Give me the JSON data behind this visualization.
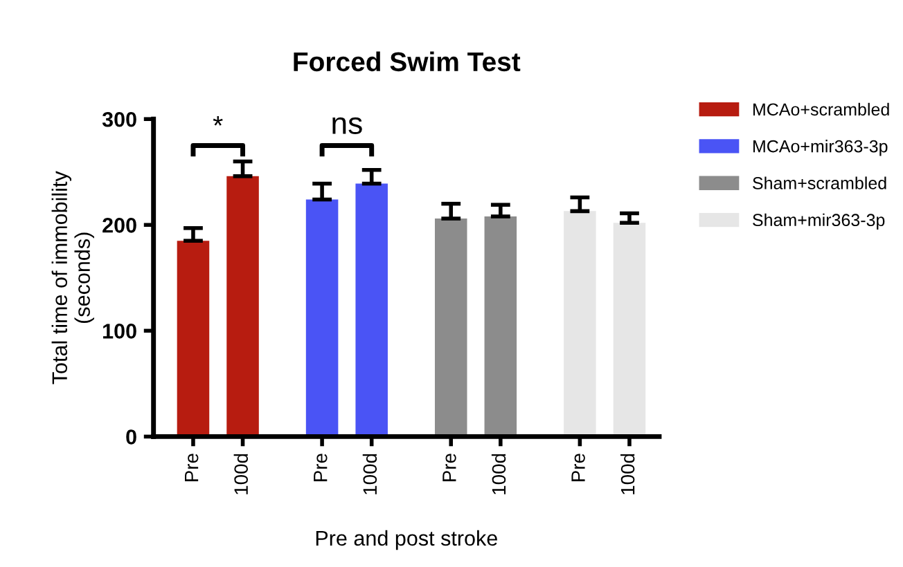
{
  "chart_data": {
    "type": "bar",
    "title": "Forced Swim Test",
    "xlabel": "Pre and post stroke",
    "ylabel": "Total time of immobility\n(seconds)",
    "categories": [
      "Pre",
      "100d",
      "Pre",
      "100d",
      "Pre",
      "100d",
      "Pre",
      "100d"
    ],
    "series": [
      {
        "name": "MCAo+scrambled",
        "color": "#b71c10",
        "values": [
          185,
          246,
          null,
          null,
          null,
          null,
          null,
          null
        ],
        "errors": [
          [
            185,
            197
          ],
          [
            246,
            260
          ],
          null,
          null,
          null,
          null,
          null,
          null
        ]
      },
      {
        "name": "MCAo+mir363-3p",
        "color": "#4a54f5",
        "values": [
          null,
          null,
          224,
          239,
          null,
          null,
          null,
          null
        ],
        "errors": [
          null,
          null,
          [
            224,
            239
          ],
          [
            239,
            252
          ],
          null,
          null,
          null,
          null
        ]
      },
      {
        "name": "Sham+scrambled",
        "color": "#8c8c8c",
        "values": [
          null,
          null,
          null,
          null,
          206,
          208,
          null,
          null
        ],
        "errors": [
          null,
          null,
          null,
          null,
          [
            206,
            220
          ],
          [
            208,
            219
          ],
          null,
          null
        ]
      },
      {
        "name": "Sham+mir363-3p",
        "color": "#e6e6e6",
        "values": [
          null,
          null,
          null,
          null,
          null,
          null,
          213,
          202
        ],
        "errors": [
          null,
          null,
          null,
          null,
          null,
          null,
          [
            213,
            226
          ],
          [
            202,
            211
          ]
        ]
      }
    ],
    "annotations": [
      "*",
      "ns"
    ],
    "ylim": [
      0,
      300
    ],
    "yticks": [
      0,
      100,
      200,
      300
    ],
    "grid": false,
    "legend": "right"
  }
}
